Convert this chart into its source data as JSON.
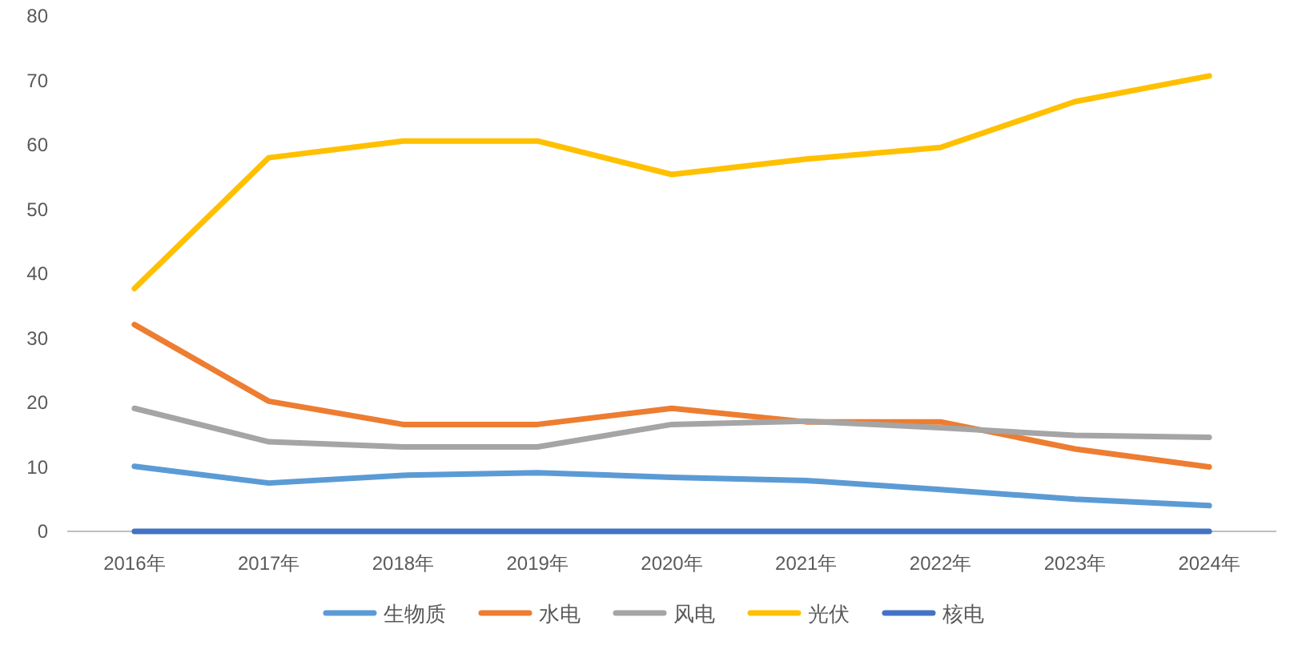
{
  "chart_data": {
    "type": "line",
    "categories": [
      "2016年",
      "2017年",
      "2018年",
      "2019年",
      "2020年",
      "2021年",
      "2022年",
      "2023年",
      "2024年"
    ],
    "ylim": [
      0,
      80
    ],
    "yticks": [
      0,
      10,
      20,
      30,
      40,
      50,
      60,
      70,
      80
    ],
    "grid": false,
    "legend": "bottom",
    "line_style": "solid",
    "series": [
      {
        "name": "生物质",
        "color": "#5b9bd5",
        "values": [
          10.1,
          7.5,
          8.7,
          9.1,
          8.4,
          7.9,
          6.5,
          5.0,
          4.0
        ]
      },
      {
        "name": "水电",
        "color": "#ed7d31",
        "values": [
          32.1,
          20.2,
          16.6,
          16.6,
          19.1,
          17.0,
          17.0,
          12.8,
          10.0
        ]
      },
      {
        "name": "风电",
        "color": "#a5a5a5",
        "values": [
          19.1,
          13.9,
          13.1,
          13.1,
          16.6,
          17.1,
          16.1,
          14.9,
          14.6
        ]
      },
      {
        "name": "光伏",
        "color": "#ffc000",
        "values": [
          37.7,
          58.0,
          60.6,
          60.6,
          55.4,
          57.8,
          59.6,
          66.7,
          70.7
        ]
      },
      {
        "name": "核电",
        "color": "#4472c4",
        "values": [
          0,
          0,
          0,
          0,
          0,
          0,
          0,
          0,
          0
        ]
      }
    ]
  }
}
